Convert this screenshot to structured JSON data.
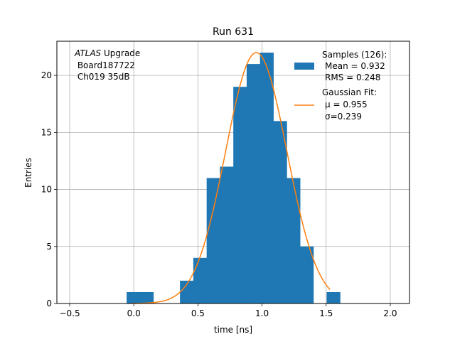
{
  "chart_data": {
    "type": "bar",
    "title": "Run 631",
    "xlabel": "time [ns]",
    "ylabel": "Entries",
    "xlim": [
      -0.6,
      2.15
    ],
    "ylim": [
      0,
      23
    ],
    "grid": true,
    "x_ticks": [
      -0.5,
      0.0,
      0.5,
      1.0,
      1.5,
      2.0
    ],
    "x_tick_labels": [
      "−0.5",
      "0.0",
      "0.5",
      "1.0",
      "1.5",
      "2.0"
    ],
    "y_ticks": [
      0,
      5,
      10,
      15,
      20
    ],
    "y_tick_labels": [
      "0",
      "5",
      "10",
      "15",
      "20"
    ],
    "annotation": {
      "italic": "ATLAS",
      "rest": " Upgrade",
      "line2": " Board187722",
      "line3": " Ch019 35dB"
    },
    "colors": {
      "histogram": "#1f77b4",
      "fit": "#ff7f0e",
      "grid": "#b0b0b0"
    },
    "histogram": {
      "name": "Samples (126):",
      "stats": [
        "Mean = 0.932",
        "RMS = 0.248"
      ],
      "bin_edges": [
        -0.056,
        0.048,
        0.152,
        0.256,
        0.36,
        0.464,
        0.568,
        0.672,
        0.776,
        0.88,
        0.984,
        1.088,
        1.192,
        1.296,
        1.4,
        1.504,
        1.608
      ],
      "counts": [
        1,
        1,
        0,
        0,
        2,
        4,
        11,
        12,
        19,
        21,
        22,
        16,
        11,
        5,
        0,
        1
      ]
    },
    "fit": {
      "name": "Gaussian Fit:",
      "mu_label": "μ = 0.955",
      "sigma_label": "σ=0.239",
      "mu": 0.955,
      "sigma": 0.239,
      "amplitude": 22.0,
      "x_range": [
        -0.02,
        1.53
      ]
    }
  }
}
